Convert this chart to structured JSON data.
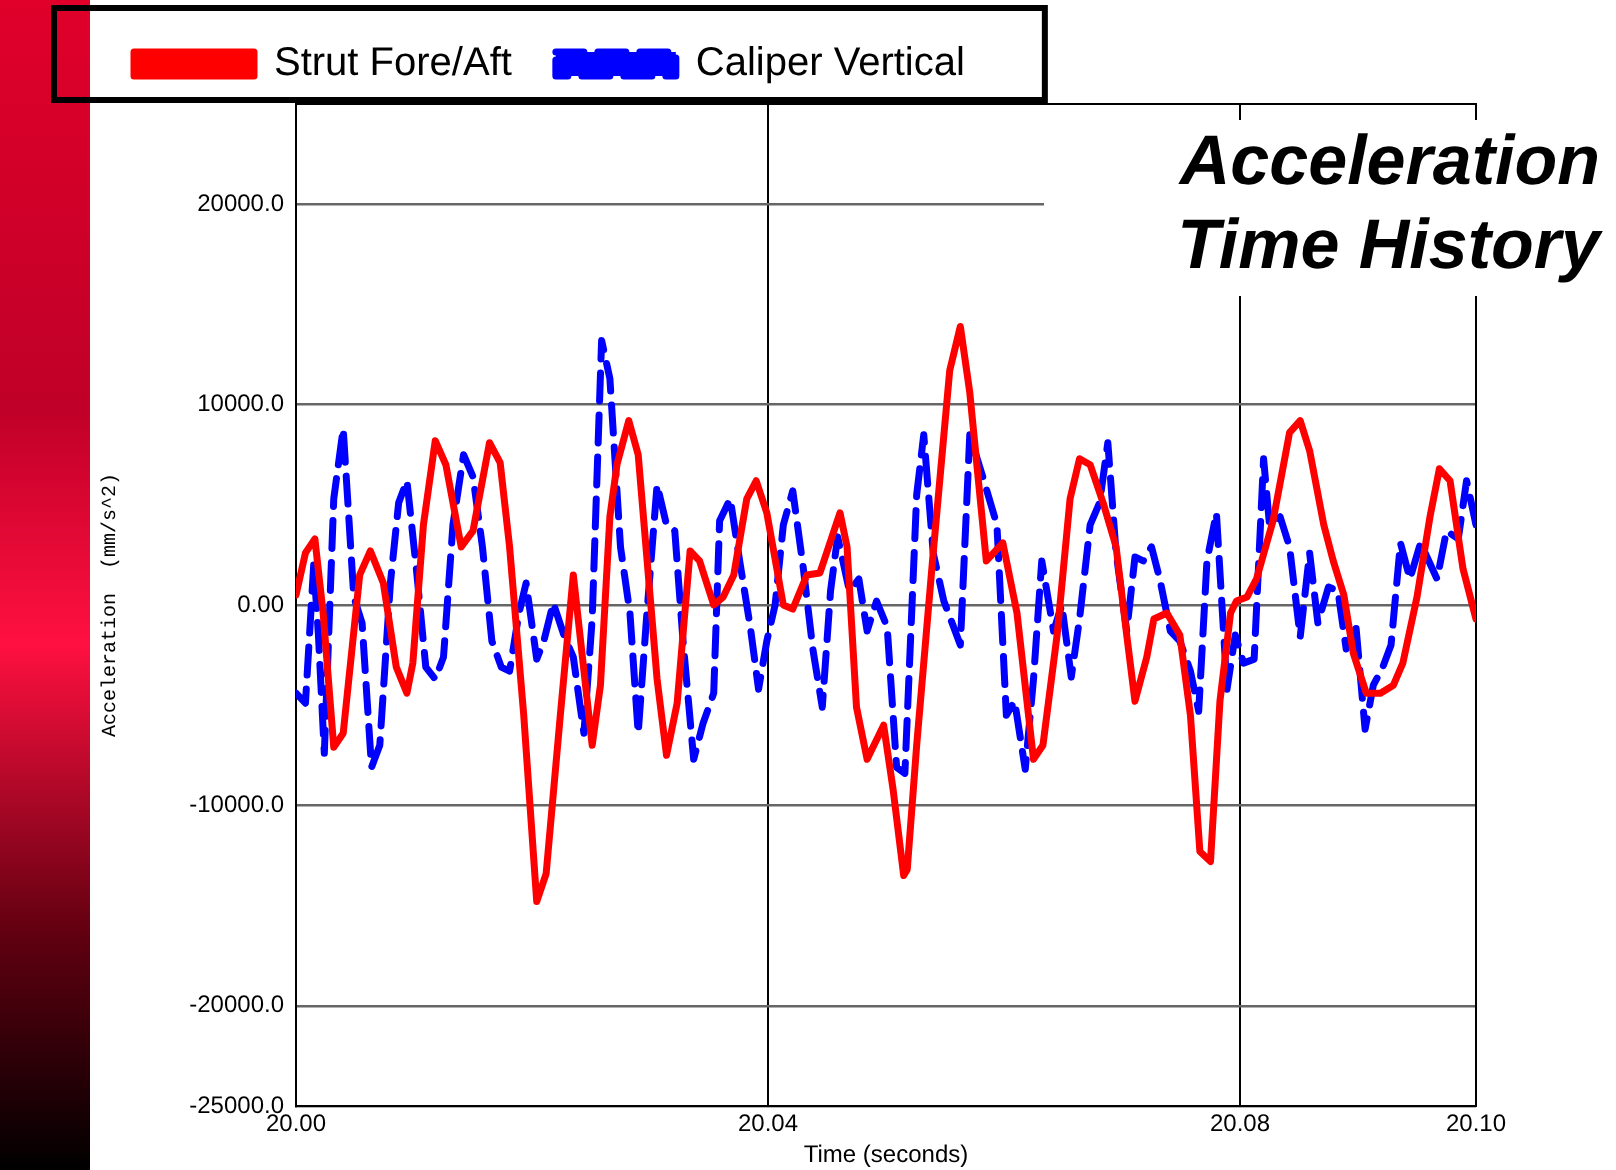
{
  "chart_data": {
    "type": "line",
    "title": "Acceleration Time History",
    "xlabel": "Time (seconds)",
    "ylabel": "Acceleration  (mm/s^2)",
    "xlim": [
      20.0,
      20.1
    ],
    "ylim": [
      -25000,
      25000
    ],
    "xticks": [
      {
        "value": 20.0,
        "label": "20.00"
      },
      {
        "value": 20.04,
        "label": "20.04"
      },
      {
        "value": 20.08,
        "label": "20.08"
      },
      {
        "value": 20.1,
        "label": "20.10"
      }
    ],
    "yticks": [
      {
        "value": -25000,
        "label": "-25000.0"
      },
      {
        "value": -20000,
        "label": "-20000.0"
      },
      {
        "value": -10000,
        "label": "-10000.0"
      },
      {
        "value": 0,
        "label": "0.00"
      },
      {
        "value": 10000,
        "label": "10000.0"
      },
      {
        "value": 20000,
        "label": "20000.0"
      }
    ],
    "grid": true,
    "legend": "top left",
    "series": [
      {
        "name": "Strut Fore/Aft",
        "color": "#ff0000",
        "line_style": "solid",
        "x": [
          20.0,
          20.0008,
          20.0016,
          20.0023,
          20.0032,
          20.004,
          20.0054,
          20.0063,
          20.0074,
          20.0085,
          20.0094,
          20.0099,
          20.0108,
          20.0118,
          20.0127,
          20.014,
          20.015,
          20.0164,
          20.0173,
          20.0181,
          20.0193,
          20.0204,
          20.0212,
          20.0224,
          20.0235,
          20.0251,
          20.0258,
          20.0266,
          20.0272,
          20.0282,
          20.029,
          20.0306,
          20.0314,
          20.0323,
          20.0334,
          20.0342,
          20.0354,
          20.0362,
          20.0371,
          20.0382,
          20.039,
          20.0399,
          20.0413,
          20.0421,
          20.0433,
          20.0444,
          20.0461,
          20.0467,
          20.0475,
          20.0484,
          20.0498,
          20.0506,
          20.0515,
          20.0518,
          20.0526,
          20.054,
          20.0554,
          20.0563,
          20.0571,
          20.0585,
          20.0599,
          20.0611,
          20.0625,
          20.0633,
          20.0645,
          20.0656,
          20.0664,
          20.0673,
          20.0684,
          20.0695,
          20.0704,
          20.0711,
          20.0721,
          20.0727,
          20.0738,
          20.0749,
          20.0758,
          20.0766,
          20.0775,
          20.0783,
          20.0792,
          20.0797,
          20.0806,
          20.0814,
          20.0828,
          20.0842,
          20.0851,
          20.0859,
          20.0871,
          20.0879,
          20.0888,
          20.0896,
          20.0907,
          20.0919,
          20.093,
          20.0938,
          20.095,
          20.0961,
          20.0969,
          20.0978,
          20.0989,
          20.1
        ],
        "values": [
          500,
          2600,
          3300,
          -400,
          -7100,
          -6400,
          1500,
          2700,
          1100,
          -3100,
          -4400,
          -2900,
          4000,
          8200,
          7000,
          2900,
          3700,
          8100,
          7100,
          2900,
          -5500,
          -14800,
          -13400,
          -5500,
          1500,
          -7000,
          -4000,
          4400,
          7000,
          9200,
          7500,
          -3700,
          -7500,
          -4900,
          2700,
          2200,
          0,
          400,
          1500,
          5300,
          6200,
          4600,
          0,
          -200,
          1500,
          1600,
          4600,
          2900,
          -5100,
          -7700,
          -6000,
          -9200,
          -13500,
          -13200,
          -7000,
          2600,
          11700,
          13900,
          10600,
          2200,
          3100,
          -400,
          -7700,
          -7000,
          -1500,
          5300,
          7300,
          7000,
          5100,
          2900,
          -1500,
          -4800,
          -2600,
          -700,
          -400,
          -1500,
          -5500,
          -12300,
          -12800,
          -4800,
          -400,
          200,
          400,
          1300,
          4200,
          8600,
          9200,
          7700,
          4000,
          2200,
          500,
          -2400,
          -4400,
          -4400,
          -4000,
          -2900,
          400,
          4400,
          6800,
          6200,
          1800,
          -700
        ]
      },
      {
        "name": "Caliper Vertical",
        "color": "#0000ff",
        "line_style": "dashed",
        "x": [
          20.0,
          20.0008,
          20.0015,
          20.0019,
          20.0024,
          20.0032,
          20.004,
          20.0049,
          20.0056,
          20.0064,
          20.0071,
          20.008,
          20.0087,
          20.0094,
          20.0102,
          20.011,
          20.0118,
          20.0125,
          20.0133,
          20.0142,
          20.015,
          20.0158,
          20.0166,
          20.0174,
          20.0181,
          20.0189,
          20.0195,
          20.0204,
          20.021,
          20.0218,
          20.0227,
          20.0235,
          20.0244,
          20.0251,
          20.0259,
          20.0266,
          20.0275,
          20.0283,
          20.029,
          20.0297,
          20.0306,
          20.0314,
          20.0321,
          20.0328,
          20.0337,
          20.0345,
          20.0354,
          20.0359,
          20.0368,
          20.0376,
          20.0385,
          20.0392,
          20.0399,
          20.0406,
          20.0413,
          20.0421,
          20.043,
          20.0438,
          20.0446,
          20.0453,
          20.0459,
          20.0469,
          20.0477,
          20.0484,
          20.0492,
          20.0501,
          20.0509,
          20.0516,
          20.0526,
          20.0532,
          20.054,
          20.0549,
          20.0563,
          20.0571,
          20.0582,
          20.0594,
          20.0602,
          20.0609,
          20.0618,
          20.0625,
          20.0632,
          20.0642,
          20.0649,
          20.0657,
          20.0664,
          20.0673,
          20.0681,
          20.0688,
          20.0695,
          20.0704,
          20.0711,
          20.0718,
          20.0725,
          20.0732,
          20.0741,
          20.0749,
          20.0758,
          20.0765,
          20.0772,
          20.078,
          20.0789,
          20.0796,
          20.0803,
          20.0812,
          20.082,
          20.0825,
          20.0834,
          20.0842,
          20.0851,
          20.0859,
          20.0866,
          20.0875,
          20.0883,
          20.089,
          20.0898,
          20.0906,
          20.0913,
          20.0921,
          20.0928,
          20.0936,
          20.0944,
          20.0953,
          20.0967,
          20.0975,
          20.0985,
          20.0992,
          20.1
        ],
        "values": [
          -4400,
          -4900,
          2000,
          -1500,
          -7400,
          5300,
          8800,
          400,
          -900,
          -8100,
          -7000,
          1100,
          5100,
          6200,
          1800,
          -3100,
          -3700,
          -2600,
          4000,
          7500,
          6400,
          2900,
          -1800,
          -3100,
          -3300,
          -400,
          1100,
          -2700,
          -1800,
          100,
          -1500,
          -2600,
          -6400,
          -700,
          13200,
          11300,
          2900,
          -400,
          -6400,
          -700,
          6000,
          4000,
          3700,
          -1800,
          -7700,
          -5900,
          -4400,
          4200,
          5300,
          2200,
          -1100,
          -4200,
          -1800,
          0,
          4000,
          5700,
          1800,
          -2200,
          -5100,
          700,
          3400,
          700,
          1300,
          -1300,
          200,
          -1100,
          -8100,
          -8400,
          5500,
          8500,
          2600,
          200,
          -2000,
          8500,
          6400,
          4000,
          -5500,
          -4800,
          -8200,
          -3700,
          2200,
          -1300,
          0,
          -3600,
          -700,
          4000,
          5100,
          8100,
          2600,
          -1300,
          2400,
          2200,
          2900,
          1300,
          -1300,
          -1800,
          -3300,
          -5300,
          2200,
          4600,
          -4200,
          -1500,
          -2900,
          -2700,
          7300,
          4000,
          4400,
          2900,
          -1600,
          2600,
          -900,
          900,
          700,
          -2200,
          -900,
          -6200,
          -4000,
          -3100,
          -2000,
          3100,
          1300,
          3100,
          1300,
          3700,
          3300,
          6200,
          4000
        ]
      }
    ]
  }
}
